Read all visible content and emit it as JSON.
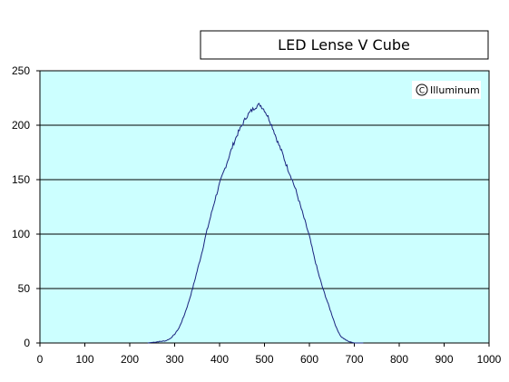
{
  "chart_data": {
    "type": "line",
    "title": "LED Lense V Cube",
    "watermark": "Illuminum",
    "xlabel": "",
    "ylabel": "",
    "xlim": [
      0,
      1000
    ],
    "ylim": [
      0,
      250
    ],
    "x_ticks": [
      0,
      100,
      200,
      300,
      400,
      500,
      600,
      700,
      800,
      900,
      1000
    ],
    "y_ticks": [
      0,
      50,
      100,
      150,
      200,
      250
    ],
    "grid": "horizontal",
    "legend": "none",
    "colors": {
      "plot_background": "#ccffff",
      "line": "#1a237e",
      "grid": "#000000"
    },
    "series": [
      {
        "points": [
          [
            240,
            0
          ],
          [
            260,
            1
          ],
          [
            280,
            2
          ],
          [
            290,
            4
          ],
          [
            300,
            8
          ],
          [
            310,
            14
          ],
          [
            320,
            24
          ],
          [
            330,
            36
          ],
          [
            340,
            50
          ],
          [
            350,
            66
          ],
          [
            360,
            82
          ],
          [
            370,
            100
          ],
          [
            380,
            116
          ],
          [
            390,
            132
          ],
          [
            400,
            146
          ],
          [
            410,
            158
          ],
          [
            420,
            170
          ],
          [
            430,
            182
          ],
          [
            440,
            192
          ],
          [
            450,
            200
          ],
          [
            460,
            208
          ],
          [
            470,
            213
          ],
          [
            480,
            217
          ],
          [
            490,
            219
          ],
          [
            500,
            214
          ],
          [
            510,
            206
          ],
          [
            520,
            196
          ],
          [
            530,
            184
          ],
          [
            540,
            174
          ],
          [
            550,
            162
          ],
          [
            560,
            152
          ],
          [
            570,
            140
          ],
          [
            580,
            126
          ],
          [
            590,
            112
          ],
          [
            600,
            98
          ],
          [
            610,
            80
          ],
          [
            620,
            64
          ],
          [
            630,
            50
          ],
          [
            640,
            38
          ],
          [
            650,
            26
          ],
          [
            660,
            14
          ],
          [
            670,
            6
          ],
          [
            680,
            3
          ],
          [
            690,
            1
          ],
          [
            700,
            0
          ],
          [
            720,
            0
          ]
        ]
      }
    ]
  }
}
